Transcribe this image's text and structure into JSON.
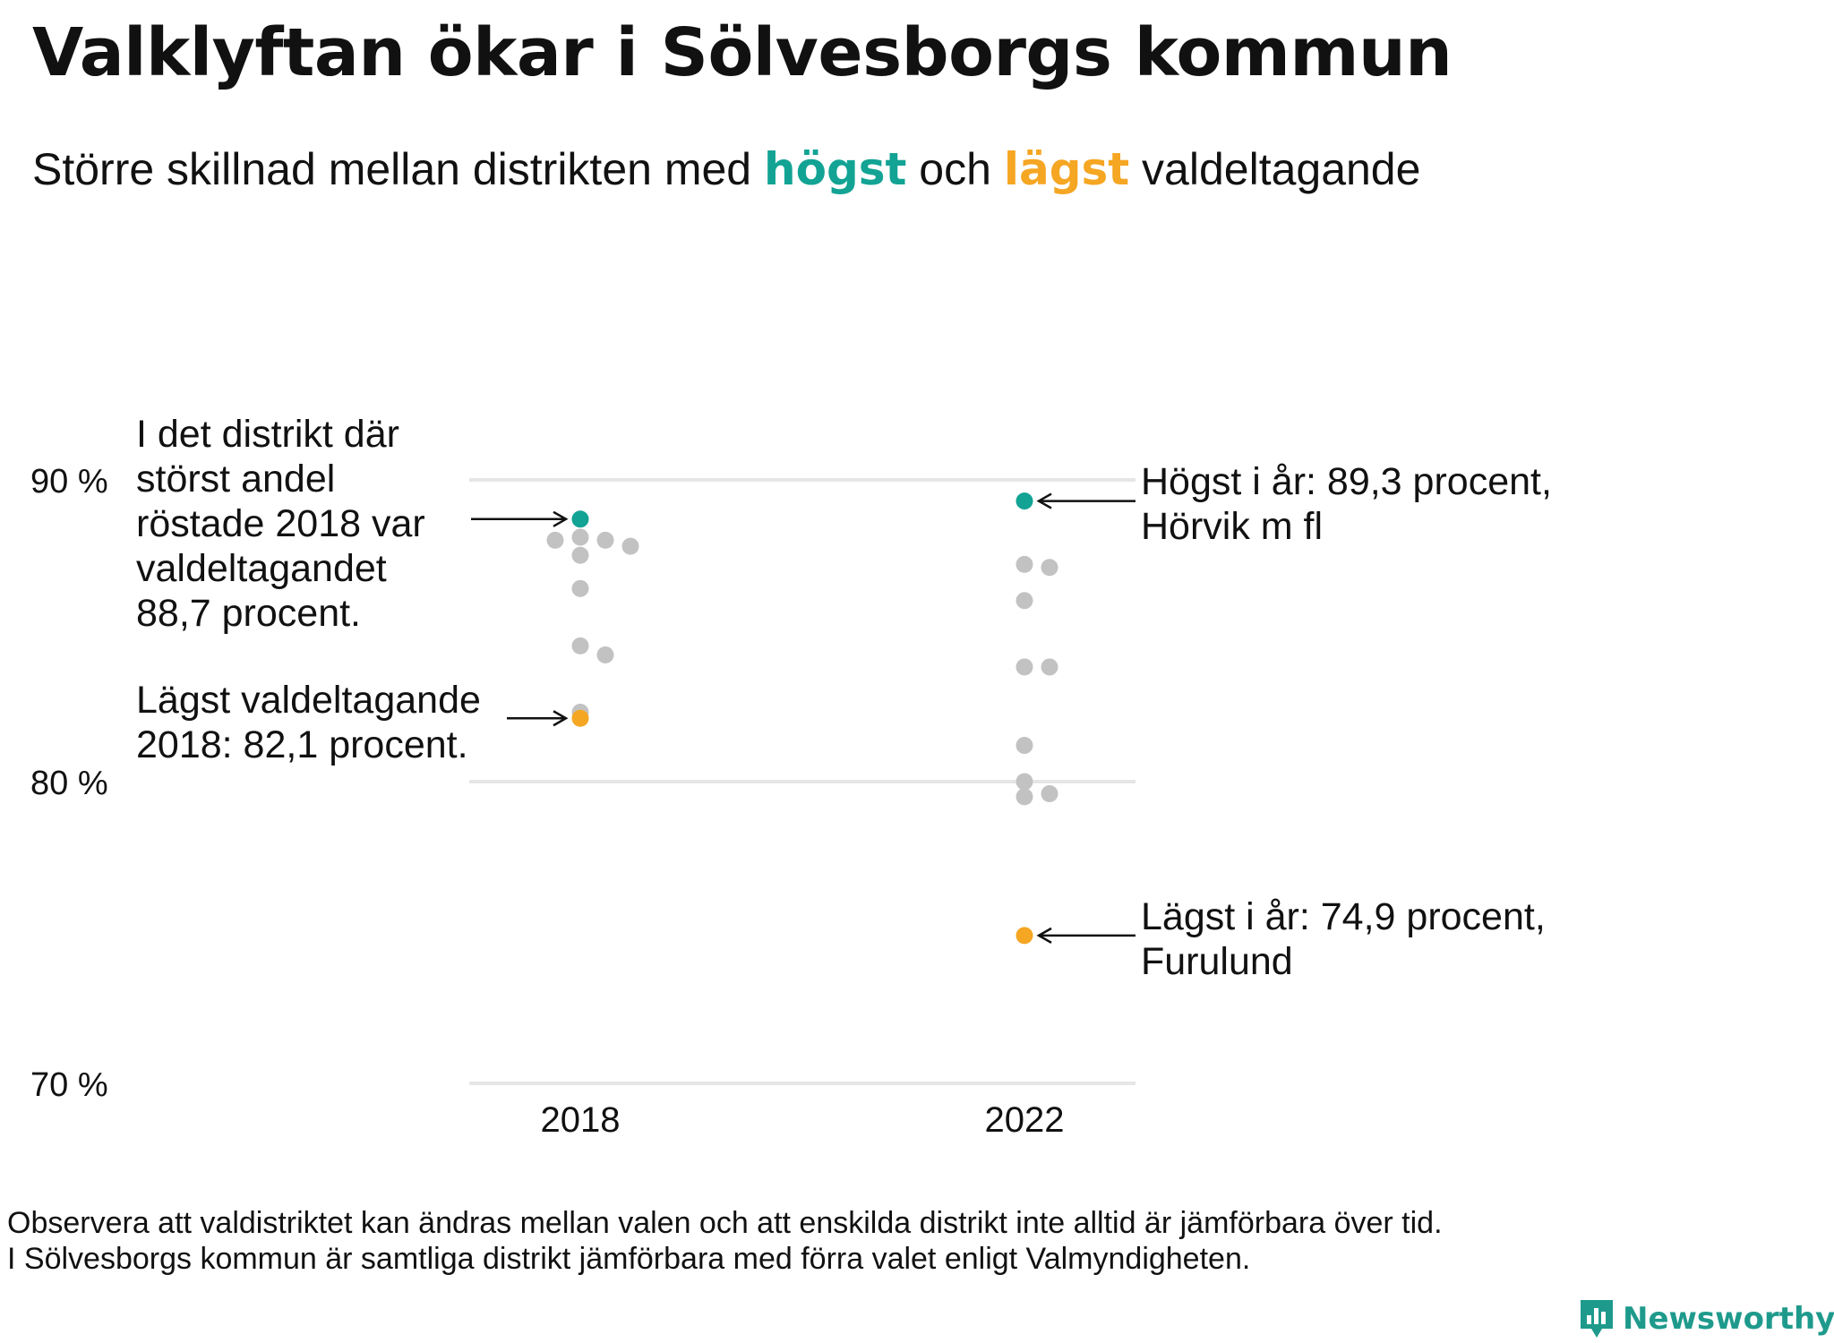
{
  "title": "Valklyftan ökar i Sölvesborgs kommun",
  "subtitle": {
    "before": "Större  skillnad  mellan  distrikten   med ",
    "highest_word": "högst",
    "middle": " och ",
    "lowest_word": "lägst",
    "after": " valdeltagande"
  },
  "colors": {
    "highest": "#12a394",
    "lowest": "#f5a623",
    "other": "#c2c2c2",
    "grid": "#e6e6e6",
    "brand": "#1e9a8c"
  },
  "chart_data": {
    "type": "scatter",
    "title": "Valklyftan ökar i Sölvesborgs kommun",
    "subtitle": "Större skillnad mellan distrikten med högst och lägst valdeltagande",
    "categories": [
      "2018",
      "2022"
    ],
    "ylim": [
      70,
      90
    ],
    "yticks": [
      90,
      80,
      70
    ],
    "ytick_labels": [
      "90 %",
      "80 %",
      "70 %"
    ],
    "grid": true,
    "series": [
      {
        "category": "2018",
        "highest": 88.7,
        "lowest": 82.1,
        "others": [
          88.1,
          88.0,
          88.0,
          87.8,
          87.5,
          86.4,
          84.5,
          84.2,
          82.3
        ]
      },
      {
        "category": "2022",
        "highest": 89.3,
        "lowest": 74.9,
        "others": [
          87.2,
          87.1,
          86.0,
          83.8,
          83.8,
          81.2,
          80.0,
          79.6,
          79.5
        ]
      }
    ],
    "annotations": [
      {
        "key": "h2018",
        "text": "I det distrikt där\nstörst andel\nröstade 2018 var\nvaldeltagandet\n88,7 procent."
      },
      {
        "key": "l2018",
        "text": "Lägst valdeltagande\n2018: 82,1 procent."
      },
      {
        "key": "h2022",
        "text": "Högst i år: 89,3 procent,\nHörvik m fl"
      },
      {
        "key": "l2022",
        "text": "Lägst i år: 74,9 procent,\nFurulund"
      }
    ]
  },
  "note": {
    "line1": "Observera att valdistriktet kan ändras mellan valen och att enskilda distrikt inte alltid är jämförbara över tid.",
    "line2": "I Sölvesborgs kommun är samtliga distrikt jämförbara med förra valet enligt Valmyndigheten."
  },
  "logo": {
    "text": "Newsworthy",
    "icon": "bar-chart-speech-bubble-icon"
  }
}
